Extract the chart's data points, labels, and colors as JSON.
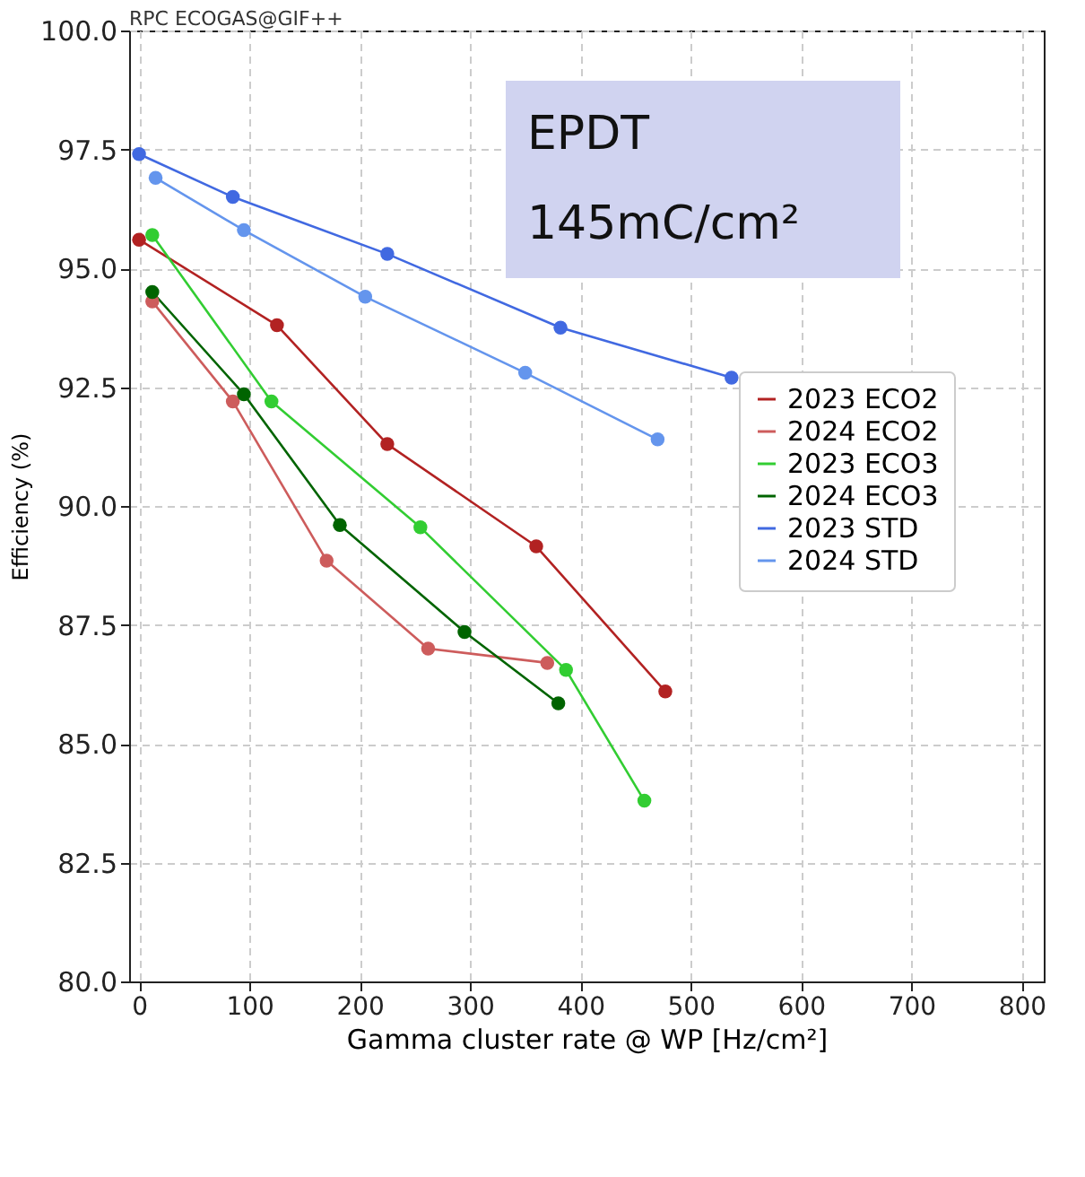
{
  "chart_data": {
    "type": "line",
    "xlabel": "Gamma cluster rate @ WP [Hz/cm²]",
    "ylabel": "Efficiency (%)",
    "annotations": [
      "RPC ECOGAS@GIF++",
      "EPDT",
      "145mC/cm²"
    ],
    "xlim": [
      -9,
      820
    ],
    "xticks": [
      0,
      100,
      200,
      300,
      400,
      500,
      600,
      700,
      800
    ],
    "ylim": [
      80,
      100
    ],
    "yticks": [
      {
        "value": 80,
        "label": "80.0"
      },
      82.5,
      {
        "value": 85,
        "label": "85.0"
      },
      87.5,
      {
        "value": 90,
        "label": "90.0"
      },
      92.5,
      {
        "value": 95,
        "label": "95.0"
      },
      97.5,
      {
        "value": 100,
        "label": "100.0"
      }
    ],
    "grid": true,
    "legend": "right",
    "marker": "circle",
    "line_style": "solid",
    "series": [
      {
        "name": "2023 ECO2",
        "color": "#b22222",
        "x": [
          0,
          125,
          225,
          360,
          477
        ],
        "values": [
          95.6,
          93.8,
          91.3,
          89.15,
          86.1
        ]
      },
      {
        "name": "2024 ECO2",
        "color": "#cd5c5c",
        "x": [
          12,
          85,
          170,
          262,
          370
        ],
        "values": [
          94.3,
          92.2,
          88.85,
          87.0,
          86.7
        ]
      },
      {
        "name": "2023 ECO3",
        "color": "#32cd32",
        "x": [
          12,
          120,
          255,
          387,
          458
        ],
        "values": [
          95.7,
          92.2,
          89.55,
          86.55,
          83.8
        ]
      },
      {
        "name": "2024 ECO3",
        "color": "#006400",
        "x": [
          12,
          95,
          182,
          295,
          380
        ],
        "values": [
          94.5,
          92.35,
          89.6,
          87.35,
          85.85
        ]
      },
      {
        "name": "2023 STD",
        "color": "#4169e1",
        "x": [
          0,
          85,
          225,
          382,
          537
        ],
        "values": [
          97.4,
          96.5,
          95.3,
          93.75,
          92.7
        ]
      },
      {
        "name": "2024 STD",
        "color": "#6495ed",
        "x": [
          15,
          95,
          205,
          350,
          470
        ],
        "values": [
          96.9,
          95.8,
          94.4,
          92.8,
          91.4
        ]
      }
    ]
  }
}
